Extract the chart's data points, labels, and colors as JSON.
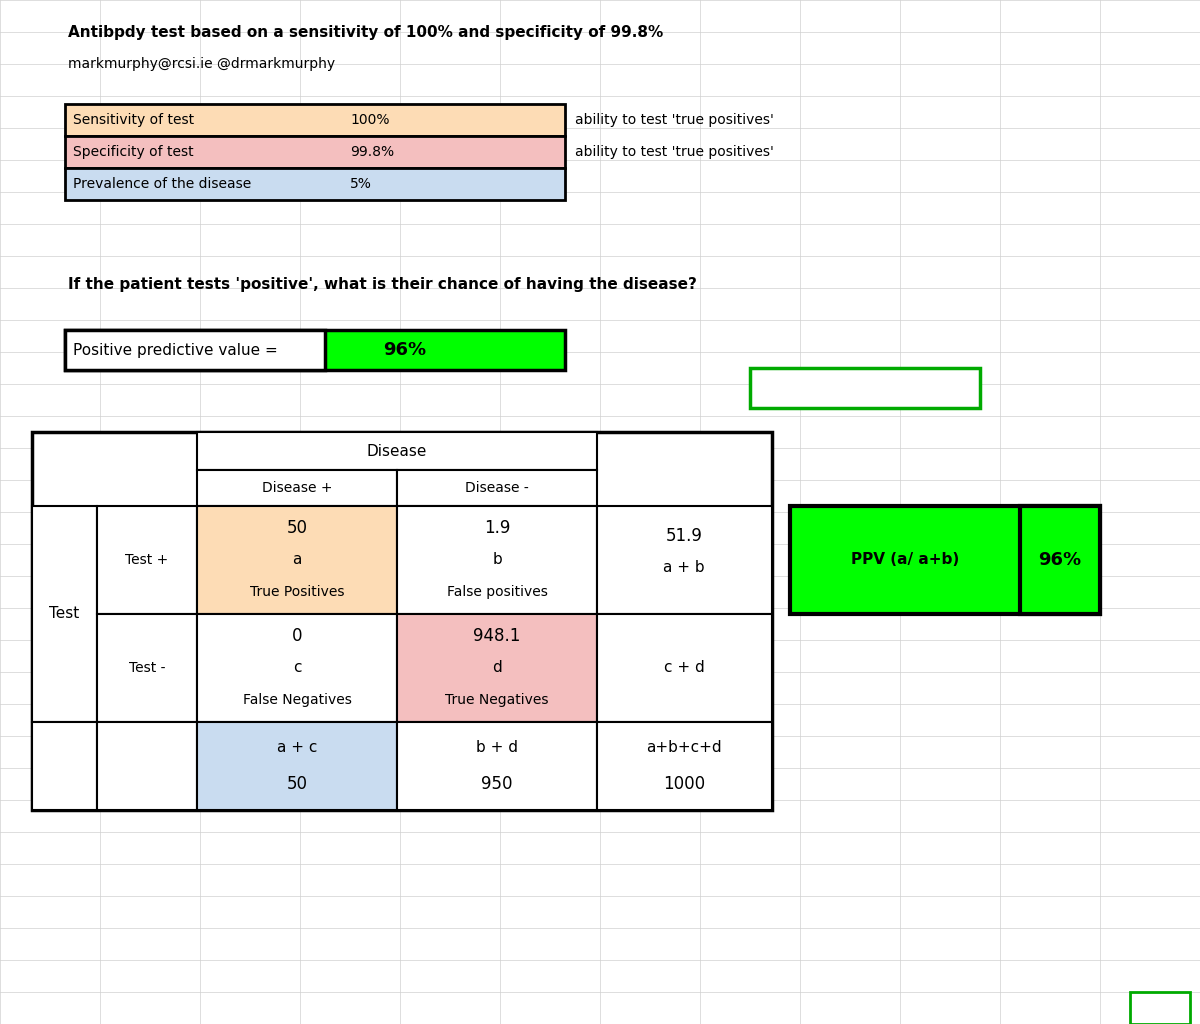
{
  "title1": "Antibpdy test based on a sensitivity of 100% and specificity of 99.8%",
  "title2": "markmurphy@rcsi.ie @drmarkmurphy",
  "question": "If the patient tests 'positive', what is their chance of having the disease?",
  "sensitivity_label": "Sensitivity of test",
  "sensitivity_value": "100%",
  "sensitivity_note": "ability to test 'true positives'",
  "sensitivity_bg": "#FDDCB5",
  "specificity_label": "Specificity of test",
  "specificity_value": "99.8%",
  "specificity_note": "ability to test 'true positives'",
  "specificity_bg": "#F4BFBF",
  "prevalence_label": "Prevalence of the disease",
  "prevalence_value": "5%",
  "prevalence_bg": "#C9DCF0",
  "ppv_label": "Positive predictive value =",
  "ppv_value": "96%",
  "ppv_bg": "#00FF00",
  "ppv_result_label": "PPV (a/ a+b)",
  "ppv_result_value": "96%",
  "true_pos_value": "50",
  "true_pos_label": "a",
  "true_pos_desc": "True Positives",
  "true_pos_bg": "#FDDCB5",
  "false_pos_value": "1.9",
  "false_pos_label": "b",
  "false_pos_desc": "False positives",
  "false_neg_value": "0",
  "false_neg_label": "c",
  "false_neg_desc": "False Negatives",
  "true_neg_value": "948.1",
  "true_neg_label": "d",
  "true_neg_desc": "True Negatives",
  "true_neg_bg": "#F4BFBF",
  "row_total_tp": "51.9",
  "row_total_tp_label": "a + b",
  "row_total_tn_label": "c + d",
  "col_total_left_label": "a + c",
  "col_total_left_value": "50",
  "col_total_left_bg": "#C9DCF0",
  "col_total_right_label": "b + d",
  "col_total_right_value": "950",
  "grand_total_label": "a+b+c+d",
  "grand_total_value": "1000",
  "bg_color": "#FFFFFF",
  "grid_color": "#D0D0D0",
  "green_border": "#00AA00"
}
